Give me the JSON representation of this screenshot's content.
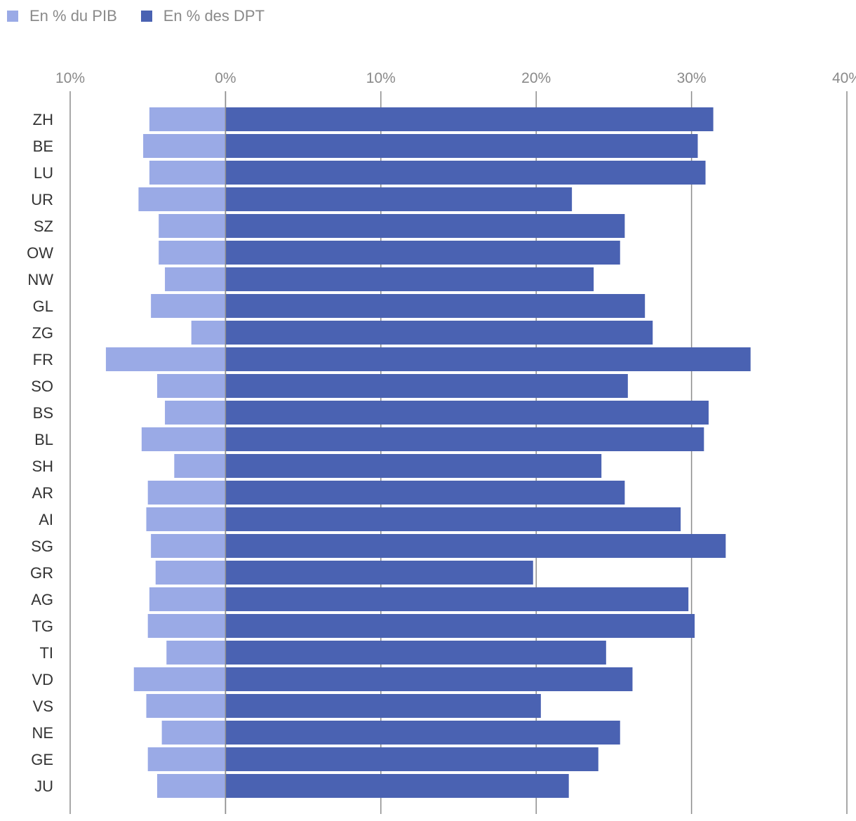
{
  "chart_data": {
    "type": "bar",
    "orientation": "horizontal",
    "categories": [
      "ZH",
      "BE",
      "LU",
      "UR",
      "SZ",
      "OW",
      "NW",
      "GL",
      "ZG",
      "FR",
      "SO",
      "BS",
      "BL",
      "SH",
      "AR",
      "AI",
      "SG",
      "GR",
      "AG",
      "TG",
      "TI",
      "VD",
      "VS",
      "NE",
      "GE",
      "JU"
    ],
    "series": [
      {
        "name": "En % du PIB",
        "color": "#9aaae6",
        "values": [
          -4.9,
          -5.3,
          -4.9,
          -5.6,
          -4.3,
          -4.3,
          -3.9,
          -4.8,
          -2.2,
          -7.7,
          -4.4,
          -3.9,
          -5.4,
          -3.3,
          -5.0,
          -5.1,
          -4.8,
          -4.5,
          -4.9,
          -5.0,
          -3.8,
          -5.9,
          -5.1,
          -4.1,
          -5.0,
          -4.4
        ]
      },
      {
        "name": "En % des DPT",
        "color": "#4a62b2",
        "values": [
          31.4,
          30.4,
          30.9,
          22.3,
          25.7,
          25.4,
          23.7,
          27.0,
          27.5,
          33.8,
          25.9,
          31.1,
          30.8,
          24.2,
          25.7,
          29.3,
          32.2,
          19.8,
          29.8,
          30.2,
          24.5,
          26.2,
          20.3,
          25.4,
          24.0,
          22.1
        ]
      }
    ],
    "xlim": [
      -10,
      40
    ],
    "xticks": [
      -10,
      0,
      10,
      20,
      30,
      40
    ],
    "xtick_labels": [
      "10%",
      "0%",
      "10%",
      "20%",
      "30%",
      "40%"
    ],
    "legend_position": "top-left",
    "grid": true
  }
}
